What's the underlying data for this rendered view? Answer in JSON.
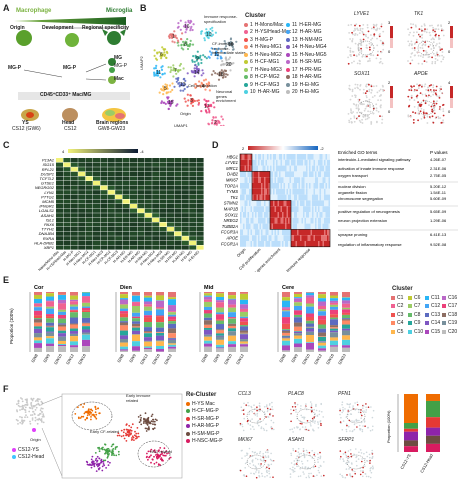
{
  "panels": {
    "A": "A",
    "B": "B",
    "C": "C",
    "D": "D",
    "E": "E",
    "F": "F"
  },
  "colors": {
    "macrophage": "#7cb342",
    "microglia": "#2e7d32",
    "accent": "#c62828",
    "heat_low": "#0b1a33",
    "heat_high": "#f2f27a"
  },
  "panelA": {
    "macrophage": "Macrophage",
    "microglia": "Microglia",
    "origin": "Origin",
    "development": "Development",
    "regional": "Regional specificity",
    "mgp": "MG-P",
    "mg": "MG",
    "mac": "Mac",
    "mgp2": "MG-P",
    "mgp3": "MG-P",
    "mg2": "MG",
    "bar": "CD45⁺CD33⁺ Mac/MG",
    "ys": "YS",
    "ys_sub": "CS12 (GW6)",
    "head": "Head",
    "head_sub": "CS12",
    "brain": "Brain regions",
    "brain_sub": "GW8-GW23"
  },
  "panelB": {
    "umap1": "UMAP1",
    "umap2": "UMAP2",
    "ann_immune": "Immune response-specification",
    "ann_intermediate": "CF-immune response-intermediate states",
    "ann_cellprolif": "Cell proliferation",
    "ann_neuronal": "Neuronal genes enrichment",
    "ann_origin": "Origin",
    "cluster_title": "Cluster",
    "clusters_left": [
      {
        "n": "1",
        "label": "H-Mono/Mac",
        "color": "#e57373"
      },
      {
        "n": "2",
        "label": "H-YS/Head-Mac",
        "color": "#f06292"
      },
      {
        "n": "3",
        "label": "H-MG-P",
        "color": "#ef5350"
      },
      {
        "n": "4",
        "label": "H-Neu-MG1",
        "color": "#ff8a65"
      },
      {
        "n": "5",
        "label": "H-Neu-MG2",
        "color": "#ffb74d"
      },
      {
        "n": "6",
        "label": "H-CF-MG1",
        "color": "#c0ca33"
      },
      {
        "n": "7",
        "label": "H-Neu-MG3",
        "color": "#9ccc65"
      },
      {
        "n": "8",
        "label": "H-CP-MG2",
        "color": "#66bb6a"
      },
      {
        "n": "9",
        "label": "H-CF-MG3",
        "color": "#26a69a"
      },
      {
        "n": "10",
        "label": "H-AR-MG",
        "color": "#4dd0e1"
      }
    ],
    "clusters_right": [
      {
        "n": "11",
        "label": "H-ER-MG",
        "color": "#29b6f6"
      },
      {
        "n": "12",
        "label": "H-AR-MG",
        "color": "#42a5f5"
      },
      {
        "n": "13",
        "label": "H-NM-MG",
        "color": "#5c6bc0"
      },
      {
        "n": "14",
        "label": "H-Neu-MG4",
        "color": "#7e57c2"
      },
      {
        "n": "15",
        "label": "H-Neu-MG5",
        "color": "#ab47bc"
      },
      {
        "n": "16",
        "label": "H-SR-MG",
        "color": "#ba68c8"
      },
      {
        "n": "17",
        "label": "H-PR-MG",
        "color": "#ec407a"
      },
      {
        "n": "18",
        "label": "H-AR-MG",
        "color": "#8d6e63"
      },
      {
        "n": "19",
        "label": "H-Ei-MG",
        "color": "#78909c"
      },
      {
        "n": "20",
        "label": "H-Ei-MG",
        "color": "#bdbdbd"
      }
    ],
    "genes": [
      "LYVE1",
      "TK1",
      "SOX11",
      "APOE"
    ],
    "gene_scale_max": [
      "3",
      "2",
      "2",
      "4"
    ],
    "gene_scale_min": [
      "0",
      "0",
      "0",
      "0"
    ]
  },
  "panelC": {
    "scale_left": "4",
    "scale_right": "-4",
    "row_labels": [
      "P13A1",
      "ISG15",
      "RPL21",
      "DUSP1",
      "TCF7L2",
      "GTSE1",
      "NEGRG02",
      "LYN1",
      "PTTG1",
      "MCM5",
      "IFNGR1",
      "LGALS1",
      "ASAH1",
      "ISL1",
      "PAX6",
      "TTYH1",
      "DNAJB4",
      "RXRA",
      "HLA-DRB1",
      "XBP1"
    ],
    "col_labels": [
      "Naive/Mono-Mac",
      "H-YS/Head-Mac",
      "H-MG-P",
      "H-Neu-MG1",
      "H-Neu-MG2",
      "H-CF-MG1",
      "H-Neu-MG3",
      "H-CP-MG2",
      "H-CF-MG3",
      "H-AR-MG",
      "H-ER-MG",
      "H-AR-MG",
      "H-NM-MG",
      "H-Neu-MG4",
      "H-Neu-MG5",
      "H-SR-MG",
      "H-PR-MG",
      "H-AR-MG",
      "H-Ei-MG",
      "H-Ei-MG"
    ],
    "matrix_diag": [
      1.0,
      0.95,
      0.9,
      0.92,
      0.88,
      0.9,
      0.85,
      0.93,
      0.9,
      0.86,
      0.9,
      0.88,
      0.92,
      0.87,
      0.9,
      0.86,
      0.91,
      0.88,
      0.9,
      0.95
    ]
  },
  "panelD": {
    "scale_left": "2",
    "scale_right": "-2",
    "genes": [
      "HBG1",
      "LYVE1",
      "MRC1",
      "DAB2",
      "MKI67",
      "TOP2A",
      "TYMS",
      "TK1",
      "STMN2",
      "MAP1B",
      "SOX11",
      "NREG2",
      "TUBB2A",
      "FCGR3A",
      "APOE",
      "FCGR1A"
    ],
    "col_groups": [
      "Origin",
      "Cell proliferation",
      "Neuronal genes enrichment",
      "Immune response"
    ],
    "go_header": "Enriched GO terms",
    "p_header": "P values",
    "go_terms": [
      {
        "term": "interleukin-1-mediated signaling pathway",
        "p": "4.26E-07"
      },
      {
        "term": "activation of innate immune response",
        "p": "2.31E-06"
      },
      {
        "term": "oxygen transport",
        "p": "2.75E-05"
      },
      {
        "term": "nuclear division",
        "p": "5.20E-12"
      },
      {
        "term": "organelle fission",
        "p": "1.54E-11"
      },
      {
        "term": "chromosome segregation",
        "p": "5.60E-09"
      },
      {
        "term": "positive regulation of neurogenesis",
        "p": "5.65E-09"
      },
      {
        "term": "neuron projection extension",
        "p": "1.29E-06"
      },
      {
        "term": "synapse pruning",
        "p": "6.41E-13"
      },
      {
        "term": "regulation of inflammatory response",
        "p": "9.52E-08"
      }
    ]
  },
  "panelE": {
    "ylabel": "Proportion (100%)",
    "regions": [
      "Cor",
      "Dien",
      "Mid",
      "Cere"
    ],
    "xlabels": [
      [
        "GW8",
        "GW9",
        "GW10",
        "GW12",
        "GW16"
      ],
      [
        "GW8",
        "GW9",
        "GW12",
        "GW16",
        "GW22"
      ],
      [
        "GW8",
        "GW9",
        "GW10",
        "GW12"
      ],
      [
        "GW8",
        "GW9",
        "GW10",
        "GW12",
        "GW16",
        "GW23"
      ]
    ],
    "legend_title": "Cluster",
    "legend": [
      {
        "k": "C1",
        "c": "#e57373"
      },
      {
        "k": "C6",
        "c": "#c0ca33"
      },
      {
        "k": "C11",
        "c": "#29b6f6"
      },
      {
        "k": "C16",
        "c": "#ba68c8"
      },
      {
        "k": "C2",
        "c": "#f06292"
      },
      {
        "k": "C7",
        "c": "#9ccc65"
      },
      {
        "k": "C12",
        "c": "#42a5f5"
      },
      {
        "k": "C17",
        "c": "#ec407a"
      },
      {
        "k": "C3",
        "c": "#ef5350"
      },
      {
        "k": "C8",
        "c": "#66bb6a"
      },
      {
        "k": "C13",
        "c": "#5c6bc0"
      },
      {
        "k": "C18",
        "c": "#8d6e63"
      },
      {
        "k": "C4",
        "c": "#ff8a65"
      },
      {
        "k": "C9",
        "c": "#26a69a"
      },
      {
        "k": "C14",
        "c": "#7e57c2"
      },
      {
        "k": "C19",
        "c": "#78909c"
      },
      {
        "k": "C5",
        "c": "#ffb74d"
      },
      {
        "k": "C10",
        "c": "#4dd0e1"
      },
      {
        "k": "C15",
        "c": "#ab47bc"
      },
      {
        "k": "C20",
        "c": "#bdbdbd"
      }
    ]
  },
  "panelF": {
    "origin": "Origin",
    "legend": [
      {
        "label": "CS12-YS",
        "color": "#e040fb"
      },
      {
        "label": "CS12-Head",
        "color": "#40c4ff"
      }
    ],
    "ann_early_immune": "Early immune related",
    "ann_early_cf": "Early CF-related",
    "ann_nsc": "NSC related",
    "recluster_title": "Re-Cluster",
    "recluster": [
      {
        "label": "H-YS Mac",
        "color": "#ef6c00"
      },
      {
        "label": "H-CF-MG-P",
        "color": "#43a047"
      },
      {
        "label": "H-SR-MG-P",
        "color": "#e53935"
      },
      {
        "label": "H-AR-MG-P",
        "color": "#8e24aa"
      },
      {
        "label": "H-SM-MG-P",
        "color": "#6d4c41"
      },
      {
        "label": "H-NSC-MG-P",
        "color": "#d81b60"
      }
    ],
    "genes": [
      "CCL3",
      "PLAC8",
      "PFN1",
      "MKI67",
      "ASAH1",
      "SFRP1"
    ],
    "bar_ylabel": "Proportion (100%)",
    "bar_x": [
      "CS12-YS",
      "CS12-Head"
    ]
  }
}
